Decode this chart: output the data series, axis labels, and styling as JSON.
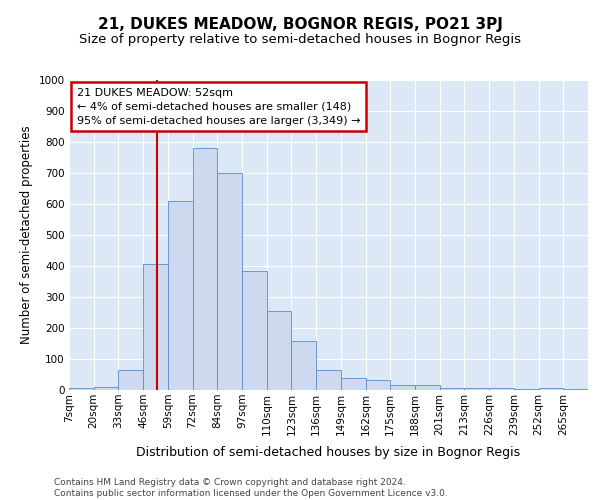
{
  "title_main": "21, DUKES MEADOW, BOGNOR REGIS, PO21 3PJ",
  "title_sub": "Size of property relative to semi-detached houses in Bognor Regis",
  "xlabel": "Distribution of semi-detached houses by size in Bognor Regis",
  "ylabel": "Number of semi-detached properties",
  "categories": [
    "7sqm",
    "20sqm",
    "33sqm",
    "46sqm",
    "59sqm",
    "72sqm",
    "84sqm",
    "97sqm",
    "110sqm",
    "123sqm",
    "136sqm",
    "149sqm",
    "162sqm",
    "175sqm",
    "188sqm",
    "201sqm",
    "213sqm",
    "226sqm",
    "239sqm",
    "252sqm",
    "265sqm"
  ],
  "values": [
    8,
    10,
    65,
    405,
    610,
    780,
    700,
    385,
    255,
    158,
    65,
    40,
    33,
    15,
    15,
    8,
    5,
    5,
    2,
    5,
    2
  ],
  "bar_color": "#ccd9ee",
  "bar_edge_color": "#5b8dc8",
  "property_line_color": "#cc0000",
  "property_line_x": 3.55,
  "annotation_text": "21 DUKES MEADOW: 52sqm\n← 4% of semi-detached houses are smaller (148)\n95% of semi-detached houses are larger (3,349) →",
  "annotation_box_facecolor": "#ffffff",
  "annotation_box_edgecolor": "#cc0000",
  "ylim": [
    0,
    1000
  ],
  "yticks": [
    0,
    100,
    200,
    300,
    400,
    500,
    600,
    700,
    800,
    900,
    1000
  ],
  "background_color": "#dce8f5",
  "grid_color": "#ffffff",
  "title_main_fontsize": 11,
  "title_sub_fontsize": 9.5,
  "ylabel_fontsize": 8.5,
  "xlabel_fontsize": 9,
  "tick_fontsize": 7.5,
  "annotation_fontsize": 8,
  "footer_fontsize": 6.5,
  "footer_text": "Contains HM Land Registry data © Crown copyright and database right 2024.\nContains public sector information licensed under the Open Government Licence v3.0."
}
